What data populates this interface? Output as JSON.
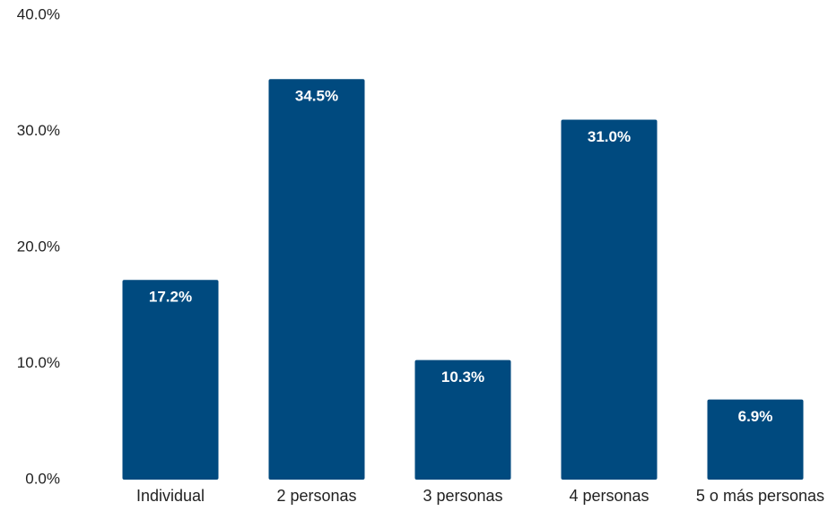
{
  "chart_data": {
    "type": "bar",
    "categories": [
      "Individual",
      "2 personas",
      "3 personas",
      "4 personas",
      "5 o más personas"
    ],
    "values": [
      17.2,
      34.5,
      10.3,
      31.0,
      6.9
    ],
    "value_labels": [
      "17.2%",
      "34.5%",
      "10.3%",
      "31.0%",
      "6.9%"
    ],
    "y_ticks": [
      0,
      10,
      20,
      30,
      40
    ],
    "y_tick_labels": [
      "0.0%",
      "10.0%",
      "20.0%",
      "30.0%",
      "40.0%"
    ],
    "ylim": [
      0,
      40
    ],
    "grid": false,
    "bar_color": "#004a7f"
  }
}
